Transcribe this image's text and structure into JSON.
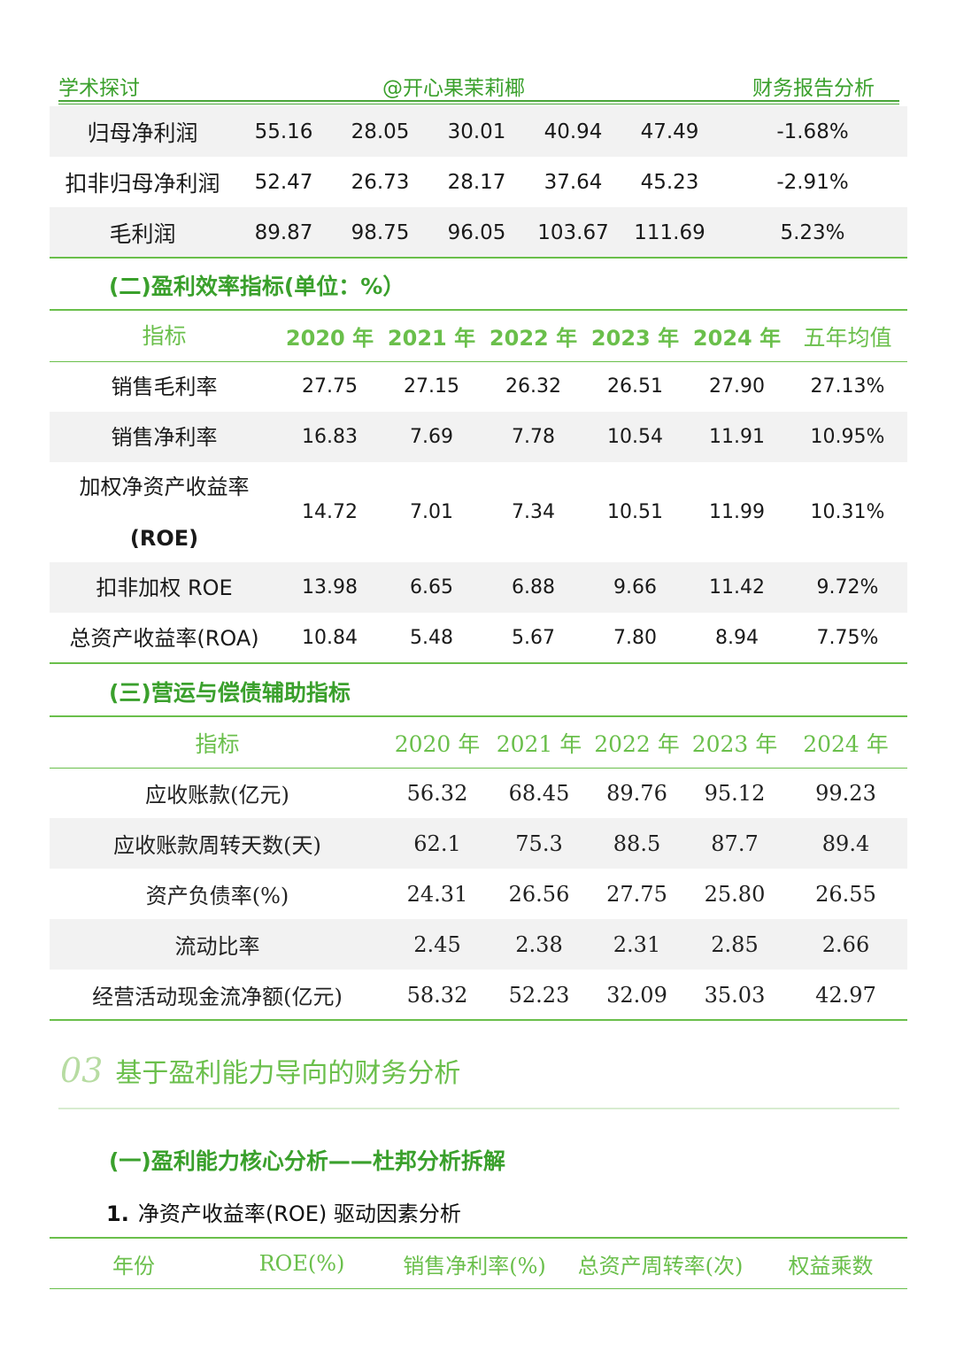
{
  "header": {
    "left": "学术探讨",
    "center": "@开心果茉莉椰",
    "right": "财务报告分析"
  },
  "table1": {
    "rows": [
      [
        "归母净利润",
        "55.16",
        "28.05",
        "30.01",
        "40.94",
        "47.49",
        "-1.68%"
      ],
      [
        "扣非归母净利润",
        "52.47",
        "26.73",
        "28.17",
        "37.64",
        "45.23",
        "-2.91%"
      ],
      [
        "毛利润",
        "89.87",
        "98.75",
        "96.05",
        "103.67",
        "111.69",
        "5.23%"
      ]
    ]
  },
  "section2": {
    "title": "(二)盈利效率指标(单位：%）",
    "headers": [
      "指标",
      "2020 年",
      "2021 年",
      "2022 年",
      "2023 年",
      "2024 年",
      "五年均值"
    ],
    "rows": [
      {
        "label": "销售毛利率",
        "values": [
          "27.75",
          "27.15",
          "26.32",
          "26.51",
          "27.90",
          "27.13%"
        ]
      },
      {
        "label": "销售净利率",
        "values": [
          "16.83",
          "7.69",
          "7.78",
          "10.54",
          "11.91",
          "10.95%"
        ]
      },
      {
        "label": "加权净资产收益率",
        "label2": "(ROE)",
        "values": [
          "14.72",
          "7.01",
          "7.34",
          "10.51",
          "11.99",
          "10.31%"
        ]
      },
      {
        "label": "扣非加权 ROE",
        "values": [
          "13.98",
          "6.65",
          "6.88",
          "9.66",
          "11.42",
          "9.72%"
        ]
      },
      {
        "label": "总资产收益率(ROA)",
        "values": [
          "10.84",
          "5.48",
          "5.67",
          "7.80",
          "8.94",
          "7.75%"
        ]
      }
    ]
  },
  "section3": {
    "title": "(三)营运与偿债辅助指标",
    "headers": [
      "指标",
      "2020 年",
      "2021 年",
      "2022 年",
      "2023 年",
      "2024 年"
    ],
    "rows": [
      [
        "应收账款(亿元)",
        "56.32",
        "68.45",
        "89.76",
        "95.12",
        "99.23"
      ],
      [
        "应收账款周转天数(天)",
        "62.1",
        "75.3",
        "88.5",
        "87.7",
        "89.4"
      ],
      [
        "资产负债率(%)",
        "24.31",
        "26.56",
        "27.75",
        "25.80",
        "26.55"
      ],
      [
        "流动比率",
        "2.45",
        "2.38",
        "2.31",
        "2.85",
        "2.66"
      ],
      [
        "经营活动现金流净额(亿元)",
        "58.32",
        "52.23",
        "32.09",
        "35.03",
        "42.97"
      ]
    ]
  },
  "chapter": {
    "number": "03",
    "title": "基于盈利能力导向的财务分析"
  },
  "subsection": {
    "title": "(一)盈利能力核心分析——杜邦分析拆解",
    "item_number": "1.",
    "item_text": "净资产收益率(ROE) 驱动因素分析"
  },
  "table4": {
    "headers": [
      "年份",
      "ROE(%)",
      "销售净利率(%)",
      "总资产周转率(次)",
      "权益乘数"
    ]
  },
  "colors": {
    "accent": "#6abf4b",
    "accent_dark": "#3aa02c",
    "row_shade": "#f2f2f2",
    "chapter_number": "#b7dca2"
  }
}
